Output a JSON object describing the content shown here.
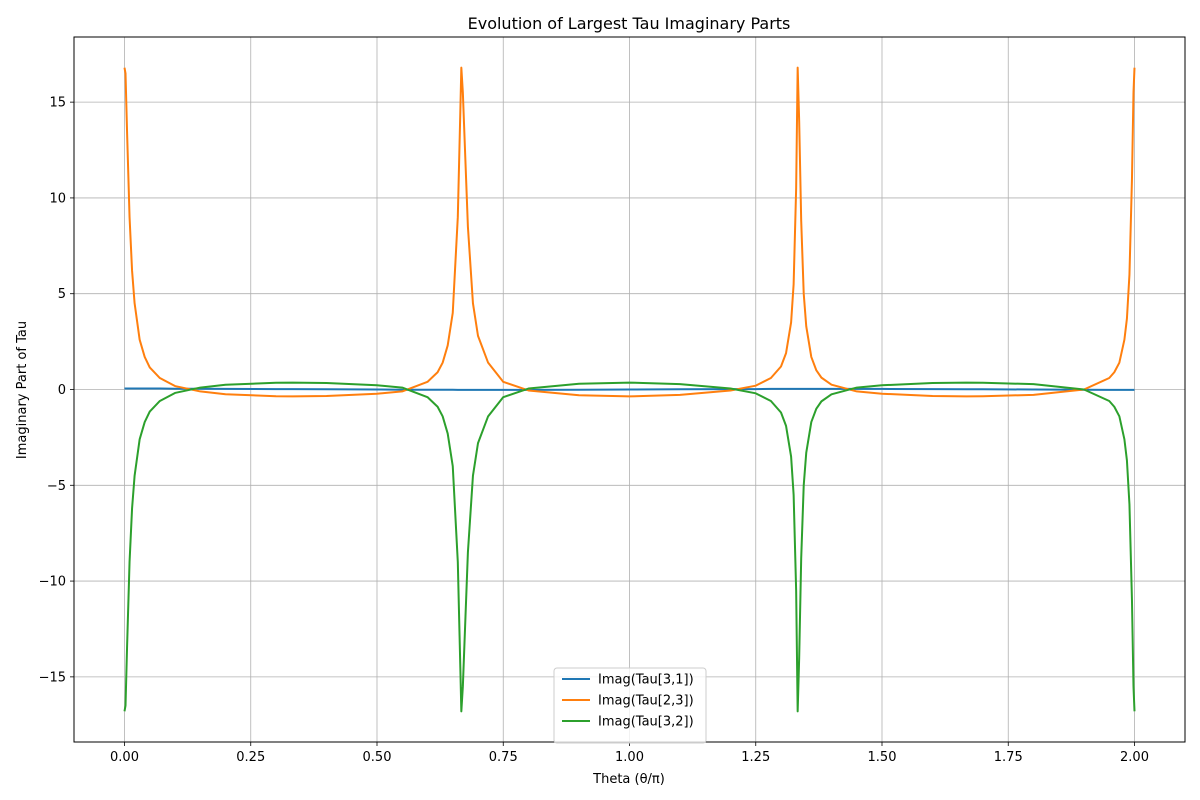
{
  "chart_data": {
    "type": "line",
    "title": "Evolution of Largest Tau Imaginary Parts",
    "xlabel": "Theta (θ/π)",
    "ylabel": "Imaginary Part of Tau",
    "xlim": [
      -0.1,
      2.1
    ],
    "ylim": [
      -18.4,
      18.4
    ],
    "xticks": [
      0.0,
      0.25,
      0.5,
      0.75,
      1.0,
      1.25,
      1.5,
      1.75,
      2.0
    ],
    "xtick_labels": [
      "0.00",
      "0.25",
      "0.50",
      "0.75",
      "1.00",
      "1.25",
      "1.50",
      "1.75",
      "2.00"
    ],
    "yticks": [
      -15,
      -10,
      -5,
      0,
      5,
      10,
      15
    ],
    "ytick_labels": [
      "−15",
      "−10",
      "−5",
      "0",
      "5",
      "10",
      "15"
    ],
    "grid": true,
    "legend_position": "bottom-center",
    "x": [
      0.0,
      0.002,
      0.005,
      0.01,
      0.015,
      0.02,
      0.03,
      0.04,
      0.05,
      0.07,
      0.1,
      0.15,
      0.2,
      0.3,
      0.333,
      0.4,
      0.5,
      0.55,
      0.6,
      0.62,
      0.63,
      0.64,
      0.65,
      0.66,
      0.665,
      0.667,
      0.67,
      0.675,
      0.68,
      0.69,
      0.7,
      0.72,
      0.75,
      0.8,
      0.9,
      1.0,
      1.1,
      1.2,
      1.25,
      1.28,
      1.3,
      1.31,
      1.32,
      1.325,
      1.33,
      1.333,
      1.336,
      1.34,
      1.345,
      1.35,
      1.36,
      1.37,
      1.38,
      1.4,
      1.45,
      1.5,
      1.6,
      1.667,
      1.7,
      1.8,
      1.9,
      1.95,
      1.96,
      1.97,
      1.98,
      1.985,
      1.99,
      1.995,
      1.998,
      2.0
    ],
    "series": [
      {
        "name": "Imag(Tau[3,1])",
        "color": "#1f77b4",
        "values": [
          0.05,
          0.05,
          0.05,
          0.05,
          0.05,
          0.05,
          0.05,
          0.05,
          0.05,
          0.05,
          0.04,
          0.04,
          0.03,
          0.02,
          0.02,
          0.01,
          0.0,
          -0.01,
          -0.01,
          -0.01,
          -0.01,
          -0.01,
          -0.01,
          -0.02,
          -0.02,
          -0.02,
          -0.02,
          -0.02,
          -0.02,
          -0.02,
          -0.02,
          -0.02,
          -0.02,
          -0.02,
          -0.01,
          0.0,
          0.01,
          0.02,
          0.02,
          0.03,
          0.03,
          0.03,
          0.03,
          0.03,
          0.03,
          0.03,
          0.03,
          0.03,
          0.03,
          0.03,
          0.03,
          0.03,
          0.03,
          0.03,
          0.03,
          0.03,
          0.02,
          0.01,
          0.01,
          0.0,
          -0.01,
          -0.02,
          -0.02,
          -0.02,
          -0.02,
          -0.02,
          -0.02,
          -0.02,
          -0.02,
          -0.02
        ]
      },
      {
        "name": "Imag(Tau[2,3])",
        "color": "#ff7f0e",
        "values": [
          16.8,
          16.5,
          13.5,
          9.0,
          6.2,
          4.5,
          2.6,
          1.7,
          1.15,
          0.6,
          0.18,
          -0.1,
          -0.25,
          -0.35,
          -0.36,
          -0.34,
          -0.22,
          -0.1,
          0.4,
          0.9,
          1.4,
          2.3,
          4.0,
          9.0,
          14.5,
          16.8,
          15.5,
          12.0,
          8.5,
          4.5,
          2.8,
          1.4,
          0.4,
          -0.05,
          -0.3,
          -0.36,
          -0.28,
          -0.05,
          0.2,
          0.6,
          1.2,
          1.9,
          3.5,
          5.5,
          10.5,
          16.8,
          14.0,
          8.8,
          5.0,
          3.3,
          1.7,
          1.0,
          0.62,
          0.25,
          -0.1,
          -0.22,
          -0.34,
          -0.36,
          -0.35,
          -0.28,
          0.0,
          0.6,
          0.9,
          1.4,
          2.6,
          3.7,
          6.0,
          11.0,
          15.5,
          16.8
        ]
      },
      {
        "name": "Imag(Tau[3,2])",
        "color": "#2ca02c",
        "values": [
          -16.8,
          -16.5,
          -13.5,
          -9.0,
          -6.2,
          -4.5,
          -2.6,
          -1.7,
          -1.15,
          -0.6,
          -0.18,
          0.1,
          0.25,
          0.35,
          0.36,
          0.34,
          0.22,
          0.1,
          -0.4,
          -0.9,
          -1.4,
          -2.3,
          -4.0,
          -9.0,
          -14.5,
          -16.8,
          -15.5,
          -12.0,
          -8.5,
          -4.5,
          -2.8,
          -1.4,
          -0.4,
          0.05,
          0.3,
          0.36,
          0.28,
          0.05,
          -0.2,
          -0.6,
          -1.2,
          -1.9,
          -3.5,
          -5.5,
          -10.5,
          -16.8,
          -14.0,
          -8.8,
          -5.0,
          -3.3,
          -1.7,
          -1.0,
          -0.62,
          -0.25,
          0.1,
          0.22,
          0.34,
          0.36,
          0.35,
          0.28,
          0.0,
          -0.6,
          -0.9,
          -1.4,
          -2.6,
          -3.7,
          -6.0,
          -11.0,
          -15.5,
          -16.8
        ]
      }
    ]
  }
}
